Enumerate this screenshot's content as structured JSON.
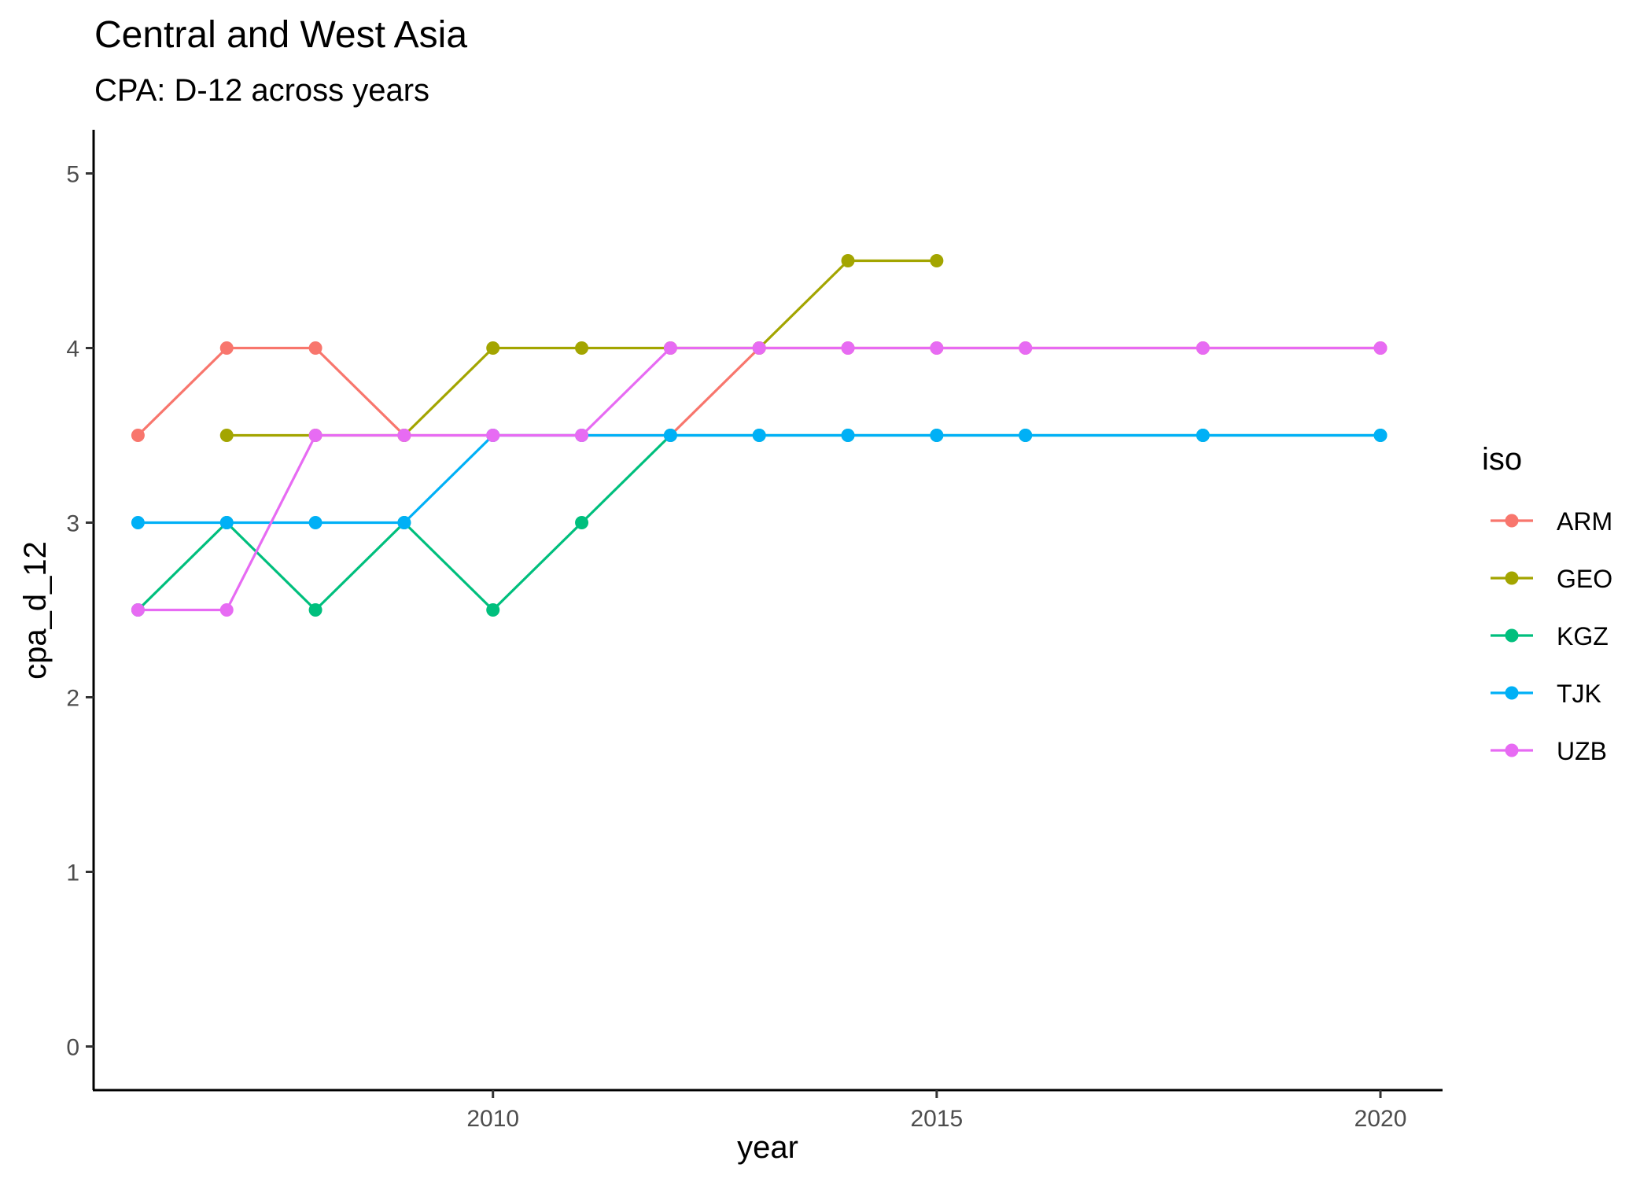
{
  "chart_data": {
    "type": "line",
    "title": "Central and West Asia",
    "subtitle": "CPA: D-12 across years",
    "xlabel": "year",
    "ylabel": "cpa_d_12",
    "xlim": [
      2005.5,
      2020.7
    ],
    "ylim": [
      -0.25,
      5.25
    ],
    "x_ticks": [
      2010,
      2015,
      2020
    ],
    "y_ticks": [
      0,
      1,
      2,
      3,
      4,
      5
    ],
    "grid": false,
    "legend": {
      "title": "iso",
      "placement": "right"
    },
    "series": [
      {
        "name": "ARM",
        "color": "#F8766D",
        "points": [
          [
            2006,
            3.5
          ],
          [
            2007,
            4
          ],
          [
            2008,
            4
          ],
          [
            2009,
            3.5
          ],
          [
            2010,
            3.5
          ],
          [
            2011,
            3.5
          ],
          [
            2012,
            3.5
          ],
          [
            2013,
            4
          ],
          [
            2014,
            4
          ],
          [
            2015,
            4
          ],
          [
            2016,
            4
          ],
          [
            2018,
            4
          ],
          [
            2020,
            4
          ]
        ]
      },
      {
        "name": "GEO",
        "color": "#A3A500",
        "points": [
          [
            2007,
            3.5
          ],
          [
            2008,
            3.5
          ],
          [
            2009,
            3.5
          ],
          [
            2010,
            4
          ],
          [
            2011,
            4
          ],
          [
            2012,
            4
          ],
          [
            2013,
            4
          ],
          [
            2014,
            4.5
          ],
          [
            2015,
            4.5
          ]
        ]
      },
      {
        "name": "KGZ",
        "color": "#00BF7D",
        "points": [
          [
            2006,
            2.5
          ],
          [
            2007,
            3
          ],
          [
            2008,
            2.5
          ],
          [
            2009,
            3
          ],
          [
            2010,
            2.5
          ],
          [
            2011,
            3
          ],
          [
            2012,
            3.5
          ],
          [
            2013,
            3.5
          ],
          [
            2014,
            3.5
          ],
          [
            2015,
            3.5
          ],
          [
            2016,
            3.5
          ],
          [
            2018,
            3.5
          ],
          [
            2020,
            3.5
          ]
        ]
      },
      {
        "name": "TJK",
        "color": "#00B0F6",
        "points": [
          [
            2006,
            3
          ],
          [
            2007,
            3
          ],
          [
            2008,
            3
          ],
          [
            2009,
            3
          ],
          [
            2010,
            3.5
          ],
          [
            2011,
            3.5
          ],
          [
            2012,
            3.5
          ],
          [
            2013,
            3.5
          ],
          [
            2014,
            3.5
          ],
          [
            2015,
            3.5
          ],
          [
            2016,
            3.5
          ],
          [
            2018,
            3.5
          ],
          [
            2020,
            3.5
          ]
        ]
      },
      {
        "name": "UZB",
        "color": "#E76BF3",
        "points": [
          [
            2006,
            2.5
          ],
          [
            2007,
            2.5
          ],
          [
            2008,
            3.5
          ],
          [
            2009,
            3.5
          ],
          [
            2010,
            3.5
          ],
          [
            2011,
            3.5
          ],
          [
            2012,
            4
          ],
          [
            2013,
            4
          ],
          [
            2014,
            4
          ],
          [
            2015,
            4
          ],
          [
            2016,
            4
          ],
          [
            2018,
            4
          ],
          [
            2020,
            4
          ]
        ]
      }
    ]
  }
}
